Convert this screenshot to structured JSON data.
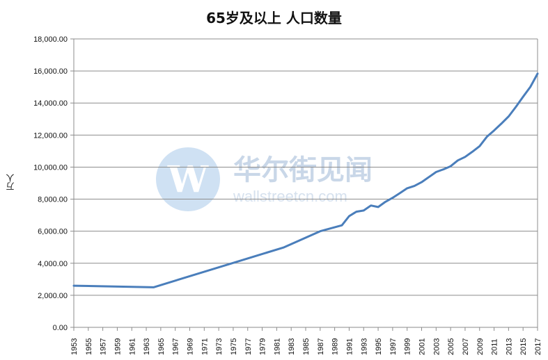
{
  "chart_data": {
    "type": "line",
    "title": "65岁及以上 人口数量",
    "ylabel": "万人",
    "xlabel": "",
    "ylim": [
      0,
      18000
    ],
    "yticks": [
      "0.00",
      "2,000.00",
      "4,000.00",
      "6,000.00",
      "8,000.00",
      "10,000.00",
      "12,000.00",
      "14,000.00",
      "16,000.00",
      "18,000.00"
    ],
    "ytick_values": [
      0,
      2000,
      4000,
      6000,
      8000,
      10000,
      12000,
      14000,
      16000,
      18000
    ],
    "xticks": [
      "1953",
      "1955",
      "1957",
      "1959",
      "1961",
      "1963",
      "1965",
      "1967",
      "1969",
      "1971",
      "1973",
      "1975",
      "1977",
      "1979",
      "1981",
      "1983",
      "1985",
      "1987",
      "1989",
      "1991",
      "1993",
      "1995",
      "1997",
      "1999",
      "2001",
      "2003",
      "2005",
      "2007",
      "2009",
      "2011",
      "2013",
      "2015",
      "2017"
    ],
    "xlim": [
      1953,
      2017
    ],
    "grid": true,
    "legend": "none",
    "line_color": "#4a7ebb",
    "series": [
      {
        "x": [
          1953,
          1964,
          1982,
          1987,
          1990,
          1991,
          1992,
          1993,
          1994,
          1995,
          1996,
          1997,
          1998,
          1999,
          2000,
          2001,
          2002,
          2003,
          2004,
          2005,
          2006,
          2007,
          2008,
          2009,
          2010,
          2011,
          2012,
          2013,
          2014,
          2015,
          2016,
          2017
        ],
        "values": [
          2600,
          2500,
          4991,
          6000,
          6368,
          6938,
          7218,
          7289,
          7603,
          7510,
          7833,
          8085,
          8375,
          8679,
          8821,
          9062,
          9377,
          9692,
          9857,
          10055,
          10419,
          10636,
          10956,
          11307,
          11894,
          12288,
          12714,
          13161,
          13755,
          14386,
          15003,
          15831
        ]
      }
    ]
  },
  "watermark": {
    "logo_letter": "W",
    "name": "华尔街见闻",
    "url": "wallstreetcn.com"
  }
}
